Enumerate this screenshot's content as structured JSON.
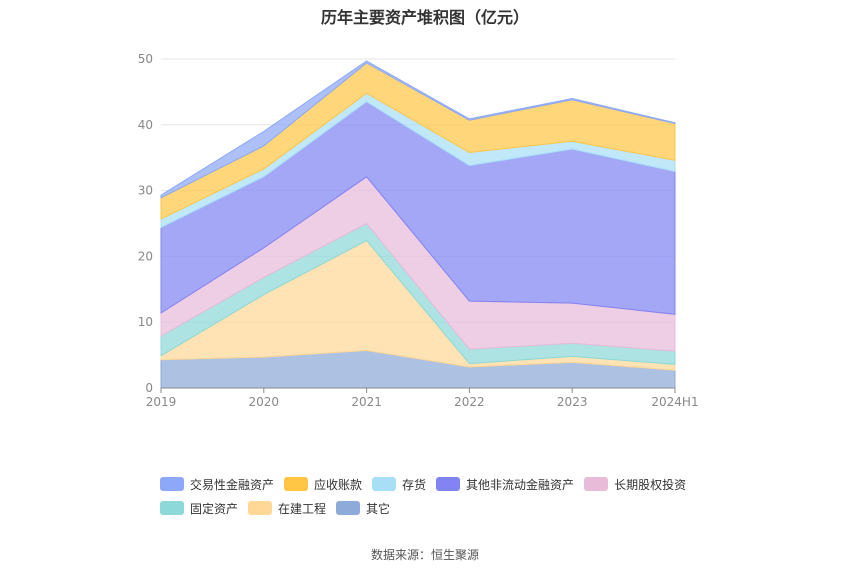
{
  "chart_data": {
    "type": "area",
    "stacked": true,
    "title": "历年主要资产堆积图（亿元）",
    "x": [
      "2019",
      "2020",
      "2021",
      "2022",
      "2023",
      "2024H1"
    ],
    "ylim": [
      0,
      50
    ],
    "yticks": [
      0,
      10,
      20,
      30,
      40,
      50
    ],
    "grid": true,
    "legend_position": "bottom",
    "series": [
      {
        "name": "其它",
        "color": "#8eaad8",
        "values": [
          4.3,
          4.7,
          5.7,
          3.2,
          3.9,
          2.7
        ]
      },
      {
        "name": "在建工程",
        "color": "#ffd897",
        "values": [
          0.6,
          9.5,
          16.7,
          0.5,
          0.9,
          0.9
        ]
      },
      {
        "name": "固定资产",
        "color": "#8dd8d8",
        "values": [
          3.0,
          2.6,
          2.6,
          2.2,
          2.0,
          2.0
        ]
      },
      {
        "name": "长期股权投资",
        "color": "#e8bbd9",
        "values": [
          3.5,
          4.5,
          7.1,
          7.3,
          6.1,
          5.6
        ]
      },
      {
        "name": "其他非流动金融资产",
        "color": "#8184f2",
        "values": [
          13.0,
          10.8,
          11.4,
          20.6,
          23.4,
          21.7
        ]
      },
      {
        "name": "存货",
        "color": "#a8dff7",
        "values": [
          1.3,
          1.2,
          1.3,
          2.0,
          1.2,
          1.7
        ]
      },
      {
        "name": "应收账款",
        "color": "#ffc646",
        "values": [
          3.2,
          3.5,
          4.6,
          4.9,
          6.3,
          5.6
        ]
      },
      {
        "name": "交易性金融资产",
        "color": "#8da8f8",
        "values": [
          0.4,
          2.2,
          0.3,
          0.2,
          0.2,
          0.1
        ]
      }
    ]
  },
  "legend": {
    "row1": [
      {
        "label": "交易性金融资产",
        "color": "#8da8f8"
      },
      {
        "label": "应收账款",
        "color": "#ffc646"
      },
      {
        "label": "存货",
        "color": "#a8dff7"
      },
      {
        "label": "其他非流动金融资产",
        "color": "#8184f2"
      },
      {
        "label": "长期股权投资",
        "color": "#e8bbd9"
      }
    ],
    "row2": [
      {
        "label": "固定资产",
        "color": "#8dd8d8"
      },
      {
        "label": "在建工程",
        "color": "#ffd897"
      },
      {
        "label": "其它",
        "color": "#8eaad8"
      }
    ]
  },
  "source": "数据来源：恒生聚源"
}
